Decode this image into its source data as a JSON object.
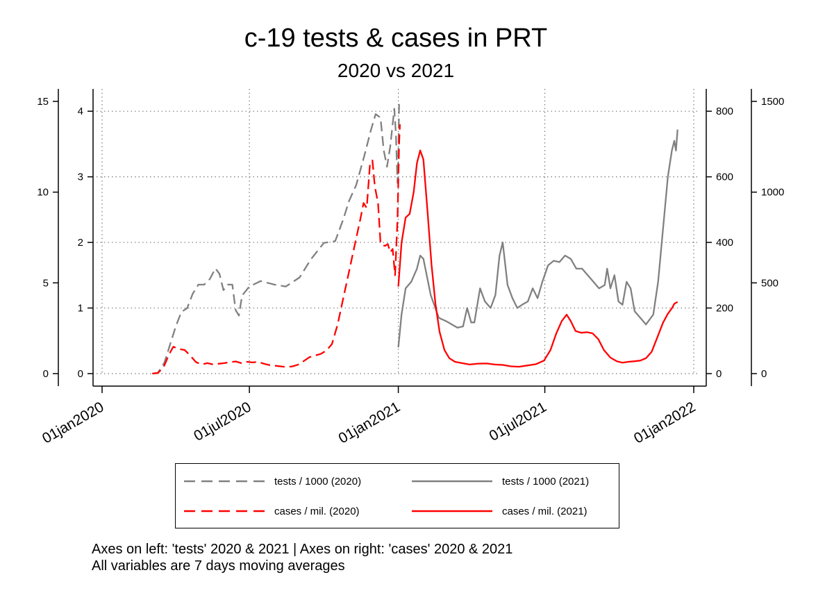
{
  "chart_data": {
    "type": "line",
    "title": "c-19 tests & cases in PRT",
    "subtitle": "2020 vs 2021",
    "x_axis": {
      "ticks": [
        "01jan2020",
        "01jul2020",
        "01jan2021",
        "01jul2021",
        "01jan2022"
      ],
      "range": [
        "2020-01-01",
        "2022-01-01"
      ],
      "grid": true
    },
    "y_axes": [
      {
        "id": "tests2020",
        "side": "left-outer",
        "range": [
          0,
          15
        ],
        "ticks": [
          "0",
          "5",
          "10",
          "15"
        ]
      },
      {
        "id": "tests2021",
        "side": "left-inner",
        "range": [
          0,
          4.15
        ],
        "ticks": [
          "0",
          "1",
          "2",
          "3",
          "4"
        ],
        "grid": true
      },
      {
        "id": "cases2020",
        "side": "right-inner",
        "range": [
          0,
          830
        ],
        "ticks": [
          "0",
          "200",
          "400",
          "600",
          "800"
        ]
      },
      {
        "id": "cases2021",
        "side": "right-outer",
        "range": [
          0,
          1500
        ],
        "ticks": [
          "0",
          "500",
          "1000",
          "1500"
        ]
      }
    ],
    "series": [
      {
        "name": "tests / 1000 (2020)",
        "axis": "tests2020",
        "color": "#808080",
        "style": "dashed",
        "points": [
          [
            "2020-03-03",
            0
          ],
          [
            "2020-03-10",
            0.05
          ],
          [
            "2020-03-18",
            0.6
          ],
          [
            "2020-03-25",
            1.6
          ],
          [
            "2020-04-01",
            2.6
          ],
          [
            "2020-04-08",
            3.4
          ],
          [
            "2020-04-15",
            3.6
          ],
          [
            "2020-04-22",
            4.4
          ],
          [
            "2020-04-29",
            4.9
          ],
          [
            "2020-05-06",
            4.9
          ],
          [
            "2020-05-13",
            5.2
          ],
          [
            "2020-05-20",
            5.8
          ],
          [
            "2020-05-25",
            5.5
          ],
          [
            "2020-05-30",
            4.6
          ],
          [
            "2020-06-04",
            4.9
          ],
          [
            "2020-06-10",
            4.9
          ],
          [
            "2020-06-14",
            3.5
          ],
          [
            "2020-06-18",
            3.2
          ],
          [
            "2020-06-22",
            4.3
          ],
          [
            "2020-07-01",
            4.8
          ],
          [
            "2020-07-15",
            5.1
          ],
          [
            "2020-08-01",
            4.9
          ],
          [
            "2020-08-15",
            4.8
          ],
          [
            "2020-09-01",
            5.3
          ],
          [
            "2020-09-15",
            6.3
          ],
          [
            "2020-10-01",
            7.2
          ],
          [
            "2020-10-15",
            7.3
          ],
          [
            "2020-10-25",
            8.5
          ],
          [
            "2020-11-01",
            9.5
          ],
          [
            "2020-11-10",
            10.4
          ],
          [
            "2020-11-20",
            12.0
          ],
          [
            "2020-11-28",
            13.4
          ],
          [
            "2020-12-04",
            14.3
          ],
          [
            "2020-12-10",
            14.1
          ],
          [
            "2020-12-14",
            12.3
          ],
          [
            "2020-12-18",
            11.4
          ],
          [
            "2020-12-22",
            12.5
          ],
          [
            "2020-12-27",
            14.6
          ],
          [
            "2020-12-29",
            13.2
          ],
          [
            "2020-12-31",
            10.5
          ],
          [
            "2021-01-01",
            12.0
          ],
          [
            "2021-01-02",
            14.9
          ],
          [
            "2021-01-03",
            15.0
          ]
        ]
      },
      {
        "name": "tests / 1000 (2021)",
        "axis": "tests2021",
        "color": "#808080",
        "style": "solid",
        "points": [
          [
            "2021-01-01",
            0.4
          ],
          [
            "2021-01-05",
            0.9
          ],
          [
            "2021-01-10",
            1.3
          ],
          [
            "2021-01-17",
            1.4
          ],
          [
            "2021-01-24",
            1.6
          ],
          [
            "2021-01-28",
            1.8
          ],
          [
            "2021-02-01",
            1.75
          ],
          [
            "2021-02-10",
            1.2
          ],
          [
            "2021-02-20",
            0.85
          ],
          [
            "2021-03-01",
            0.8
          ],
          [
            "2021-03-15",
            0.7
          ],
          [
            "2021-03-22",
            0.72
          ],
          [
            "2021-03-27",
            1.0
          ],
          [
            "2021-04-01",
            0.78
          ],
          [
            "2021-04-05",
            0.78
          ],
          [
            "2021-04-12",
            1.3
          ],
          [
            "2021-04-18",
            1.1
          ],
          [
            "2021-04-25",
            1.0
          ],
          [
            "2021-05-01",
            1.2
          ],
          [
            "2021-05-06",
            1.8
          ],
          [
            "2021-05-10",
            2.0
          ],
          [
            "2021-05-16",
            1.35
          ],
          [
            "2021-05-22",
            1.15
          ],
          [
            "2021-05-28",
            1.0
          ],
          [
            "2021-06-03",
            1.05
          ],
          [
            "2021-06-10",
            1.1
          ],
          [
            "2021-06-16",
            1.3
          ],
          [
            "2021-06-22",
            1.15
          ],
          [
            "2021-06-28",
            1.4
          ],
          [
            "2021-07-05",
            1.65
          ],
          [
            "2021-07-12",
            1.72
          ],
          [
            "2021-07-19",
            1.7
          ],
          [
            "2021-07-26",
            1.8
          ],
          [
            "2021-08-02",
            1.75
          ],
          [
            "2021-08-09",
            1.6
          ],
          [
            "2021-08-16",
            1.6
          ],
          [
            "2021-08-23",
            1.5
          ],
          [
            "2021-08-30",
            1.4
          ],
          [
            "2021-09-06",
            1.3
          ],
          [
            "2021-09-13",
            1.35
          ],
          [
            "2021-09-16",
            1.6
          ],
          [
            "2021-09-20",
            1.3
          ],
          [
            "2021-09-25",
            1.5
          ],
          [
            "2021-09-30",
            1.1
          ],
          [
            "2021-10-05",
            1.05
          ],
          [
            "2021-10-10",
            1.4
          ],
          [
            "2021-10-15",
            1.3
          ],
          [
            "2021-10-20",
            0.95
          ],
          [
            "2021-10-27",
            0.85
          ],
          [
            "2021-11-03",
            0.75
          ],
          [
            "2021-11-12",
            0.9
          ],
          [
            "2021-11-18",
            1.4
          ],
          [
            "2021-11-24",
            2.2
          ],
          [
            "2021-11-30",
            3.0
          ],
          [
            "2021-12-05",
            3.4
          ],
          [
            "2021-12-08",
            3.55
          ],
          [
            "2021-12-10",
            3.4
          ],
          [
            "2021-12-12",
            3.72
          ]
        ]
      },
      {
        "name": "cases / mil. (2020)",
        "axis": "cases2020",
        "color": "#ff0000",
        "style": "dashed",
        "points": [
          [
            "2020-03-03",
            0
          ],
          [
            "2020-03-10",
            2
          ],
          [
            "2020-03-17",
            20
          ],
          [
            "2020-03-24",
            60
          ],
          [
            "2020-03-29",
            82
          ],
          [
            "2020-04-05",
            75
          ],
          [
            "2020-04-12",
            72
          ],
          [
            "2020-04-19",
            55
          ],
          [
            "2020-04-26",
            35
          ],
          [
            "2020-05-03",
            28
          ],
          [
            "2020-05-10",
            32
          ],
          [
            "2020-05-17",
            28
          ],
          [
            "2020-05-24",
            30
          ],
          [
            "2020-05-31",
            32
          ],
          [
            "2020-06-07",
            35
          ],
          [
            "2020-06-14",
            37
          ],
          [
            "2020-06-21",
            32
          ],
          [
            "2020-06-28",
            36
          ],
          [
            "2020-07-05",
            34
          ],
          [
            "2020-07-12",
            36
          ],
          [
            "2020-07-19",
            30
          ],
          [
            "2020-07-26",
            26
          ],
          [
            "2020-08-02",
            24
          ],
          [
            "2020-08-09",
            22
          ],
          [
            "2020-08-16",
            20
          ],
          [
            "2020-08-23",
            22
          ],
          [
            "2020-08-30",
            27
          ],
          [
            "2020-09-06",
            38
          ],
          [
            "2020-09-13",
            50
          ],
          [
            "2020-09-20",
            55
          ],
          [
            "2020-09-27",
            60
          ],
          [
            "2020-10-04",
            70
          ],
          [
            "2020-10-11",
            90
          ],
          [
            "2020-10-18",
            150
          ],
          [
            "2020-10-25",
            230
          ],
          [
            "2020-11-01",
            310
          ],
          [
            "2020-11-08",
            390
          ],
          [
            "2020-11-15",
            470
          ],
          [
            "2020-11-19",
            520
          ],
          [
            "2020-11-23",
            505
          ],
          [
            "2020-11-27",
            640
          ],
          [
            "2020-11-30",
            650
          ],
          [
            "2020-12-03",
            570
          ],
          [
            "2020-12-07",
            520
          ],
          [
            "2020-12-10",
            400
          ],
          [
            "2020-12-13",
            390
          ],
          [
            "2020-12-16",
            390
          ],
          [
            "2020-12-19",
            395
          ],
          [
            "2020-12-22",
            370
          ],
          [
            "2020-12-25",
            380
          ],
          [
            "2020-12-28",
            300
          ],
          [
            "2020-12-31",
            470
          ],
          [
            "2021-01-02",
            700
          ],
          [
            "2021-01-03",
            760
          ]
        ]
      },
      {
        "name": "cases / mil. (2021)",
        "axis": "cases2021",
        "color": "#ff0000",
        "style": "solid",
        "points": [
          [
            "2021-01-01",
            480
          ],
          [
            "2021-01-05",
            720
          ],
          [
            "2021-01-10",
            860
          ],
          [
            "2021-01-15",
            880
          ],
          [
            "2021-01-20",
            1000
          ],
          [
            "2021-01-24",
            1160
          ],
          [
            "2021-01-28",
            1230
          ],
          [
            "2021-02-01",
            1180
          ],
          [
            "2021-02-06",
            900
          ],
          [
            "2021-02-11",
            600
          ],
          [
            "2021-02-16",
            380
          ],
          [
            "2021-02-21",
            230
          ],
          [
            "2021-02-27",
            130
          ],
          [
            "2021-03-05",
            85
          ],
          [
            "2021-03-12",
            65
          ],
          [
            "2021-03-20",
            58
          ],
          [
            "2021-03-30",
            50
          ],
          [
            "2021-04-10",
            55
          ],
          [
            "2021-04-20",
            56
          ],
          [
            "2021-04-30",
            50
          ],
          [
            "2021-05-10",
            48
          ],
          [
            "2021-05-20",
            40
          ],
          [
            "2021-05-30",
            38
          ],
          [
            "2021-06-10",
            45
          ],
          [
            "2021-06-20",
            52
          ],
          [
            "2021-06-30",
            72
          ],
          [
            "2021-07-08",
            130
          ],
          [
            "2021-07-15",
            220
          ],
          [
            "2021-07-22",
            290
          ],
          [
            "2021-07-28",
            325
          ],
          [
            "2021-08-02",
            290
          ],
          [
            "2021-08-08",
            235
          ],
          [
            "2021-08-15",
            225
          ],
          [
            "2021-08-22",
            228
          ],
          [
            "2021-08-29",
            222
          ],
          [
            "2021-09-05",
            190
          ],
          [
            "2021-09-12",
            130
          ],
          [
            "2021-09-20",
            88
          ],
          [
            "2021-09-28",
            68
          ],
          [
            "2021-10-05",
            60
          ],
          [
            "2021-10-12",
            65
          ],
          [
            "2021-10-20",
            68
          ],
          [
            "2021-10-27",
            72
          ],
          [
            "2021-11-03",
            85
          ],
          [
            "2021-11-10",
            120
          ],
          [
            "2021-11-17",
            200
          ],
          [
            "2021-11-24",
            280
          ],
          [
            "2021-11-30",
            330
          ],
          [
            "2021-12-05",
            360
          ],
          [
            "2021-12-08",
            385
          ],
          [
            "2021-12-12",
            395
          ]
        ]
      }
    ],
    "legend_position": "bottom"
  },
  "legend": {
    "items": [
      {
        "label": "tests / 1000 (2020)",
        "color": "#808080",
        "style": "dashed"
      },
      {
        "label": "tests / 1000 (2021)",
        "color": "#808080",
        "style": "solid"
      },
      {
        "label": "cases / mil. (2020)",
        "color": "#ff0000",
        "style": "dashed"
      },
      {
        "label": "cases / mil. (2021)",
        "color": "#ff0000",
        "style": "solid"
      }
    ]
  },
  "notes": {
    "line1": "Axes on left: 'tests' 2020 & 2021 | Axes on right: 'cases' 2020 & 2021",
    "line2": "All variables are 7 days moving averages"
  }
}
